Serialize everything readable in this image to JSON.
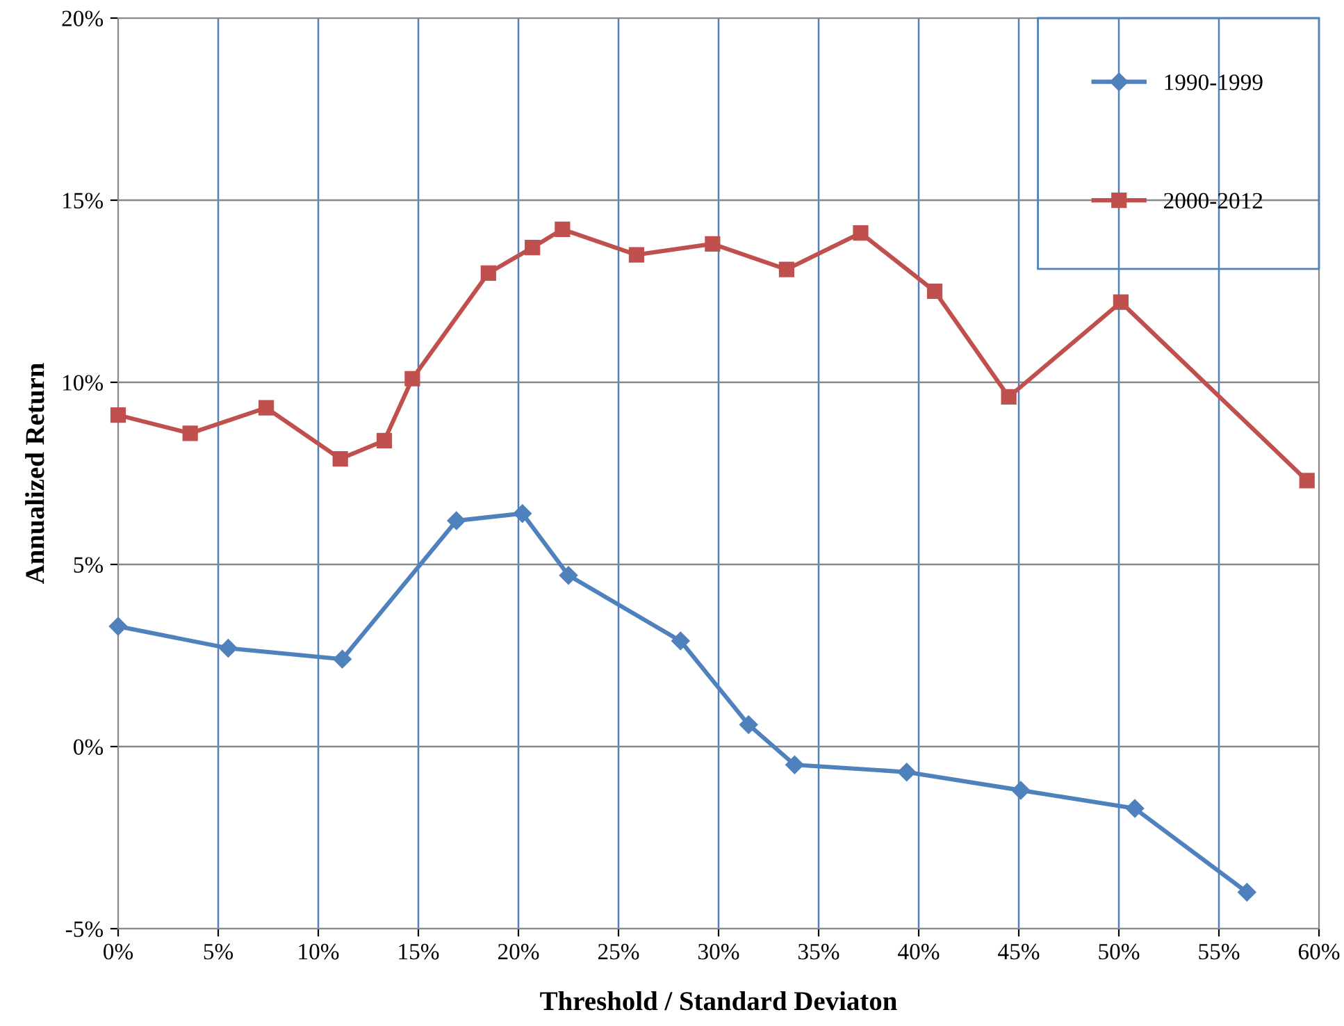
{
  "chart_data": {
    "type": "line",
    "xlabel": "Threshold / Standard Deviaton",
    "ylabel": "Annualized Return",
    "xlim": [
      0,
      60
    ],
    "xticks": [
      {
        "value": 0,
        "label": "0%"
      },
      {
        "value": 5,
        "label": "5%"
      },
      {
        "value": 10,
        "label": "10%"
      },
      {
        "value": 15,
        "label": "15%"
      },
      {
        "value": 20,
        "label": "20%"
      },
      {
        "value": 25,
        "label": "25%"
      },
      {
        "value": 30,
        "label": "30%"
      },
      {
        "value": 35,
        "label": "35%"
      },
      {
        "value": 40,
        "label": "40%"
      },
      {
        "value": 45,
        "label": "45%"
      },
      {
        "value": 50,
        "label": "50%"
      },
      {
        "value": 55,
        "label": "55%"
      },
      {
        "value": 60,
        "label": "60%"
      }
    ],
    "ylim": [
      -5,
      20
    ],
    "yticks": [
      {
        "value": -5,
        "label": "-5%"
      },
      {
        "value": 0,
        "label": "0%"
      },
      {
        "value": 5,
        "label": "5%"
      },
      {
        "value": 10,
        "label": "10%"
      },
      {
        "value": 15,
        "label": "15%"
      },
      {
        "value": 20,
        "label": "20%"
      }
    ],
    "grid": true,
    "legend": "top right",
    "line_style": "solid",
    "series": [
      {
        "name": "1990-1999",
        "color": "#4f81bd",
        "marker": "diamond",
        "x": [
          0,
          5.5,
          11.2,
          16.9,
          20.2,
          22.5,
          28.1,
          31.5,
          33.8,
          39.4,
          45.1,
          50.8,
          56.4
        ],
        "values": [
          3.3,
          2.7,
          2.4,
          6.2,
          6.4,
          4.7,
          2.9,
          0.6,
          -0.5,
          -0.7,
          -1.2,
          -1.7,
          -4.0
        ]
      },
      {
        "name": "2000-2012",
        "color": "#c0504d",
        "marker": "square",
        "x": [
          0,
          3.6,
          7.4,
          11.1,
          13.3,
          14.7,
          18.5,
          20.7,
          22.2,
          25.9,
          29.7,
          33.4,
          37.1,
          40.8,
          44.5,
          50.1,
          59.4
        ],
        "values": [
          9.1,
          8.6,
          9.3,
          7.9,
          8.4,
          10.1,
          13.0,
          13.7,
          14.2,
          13.5,
          13.8,
          13.1,
          14.1,
          12.5,
          9.6,
          12.2,
          7.3
        ]
      }
    ]
  }
}
